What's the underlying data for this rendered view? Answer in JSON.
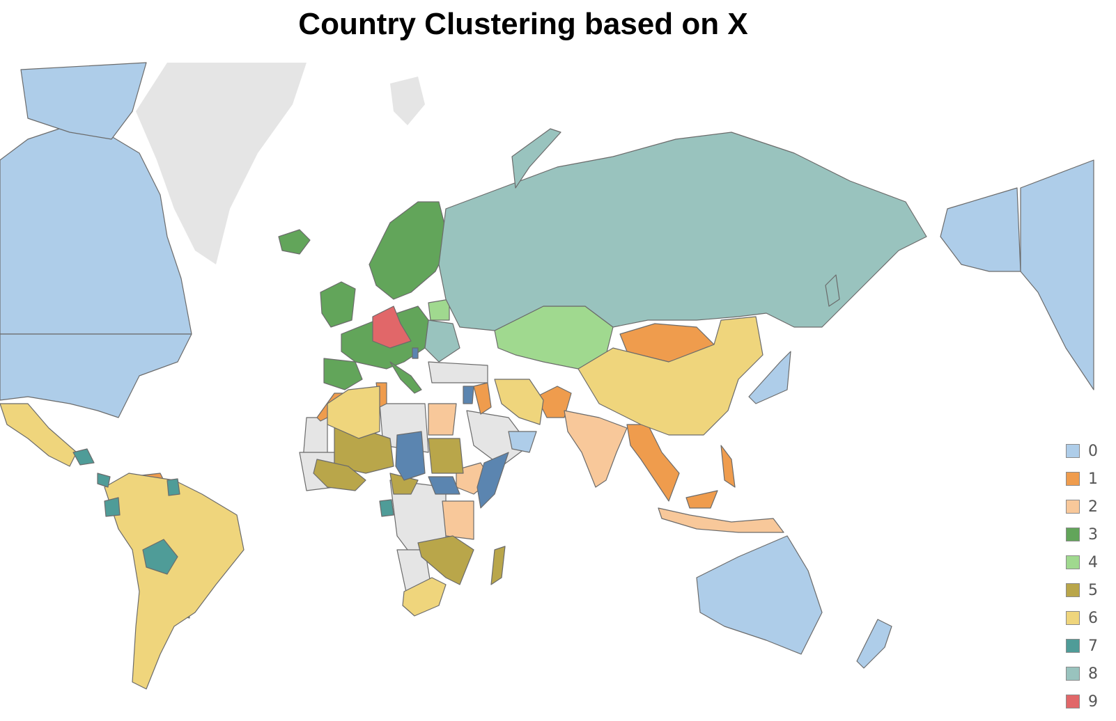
{
  "title": "Country Clustering based on X",
  "legend": [
    {
      "label": "0",
      "color": "#aecde9"
    },
    {
      "label": "1",
      "color": "#ef9c4d"
    },
    {
      "label": "2",
      "color": "#f8c89a"
    },
    {
      "label": "3",
      "color": "#62a55a"
    },
    {
      "label": "4",
      "color": "#a0d98f"
    },
    {
      "label": "5",
      "color": "#b9a64a"
    },
    {
      "label": "6",
      "color": "#efd57c"
    },
    {
      "label": "7",
      "color": "#4f9c98"
    },
    {
      "label": "8",
      "color": "#99c3be"
    },
    {
      "label": "9",
      "color": "#e16769"
    }
  ],
  "no_data_color": "#e5e5e5"
}
